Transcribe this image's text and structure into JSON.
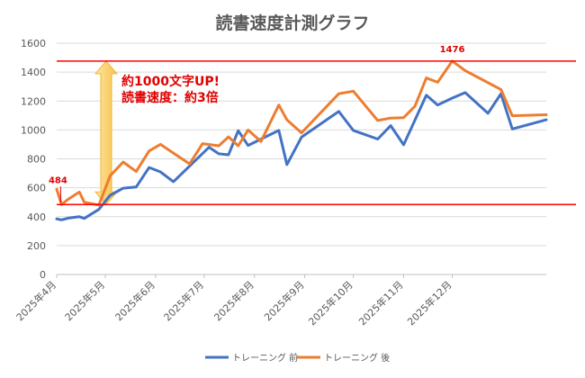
{
  "chart_data": {
    "type": "line",
    "title": "読書速度計測グラフ",
    "xlabel": "",
    "ylabel": "",
    "ylim": [
      0,
      1600
    ],
    "yticks": [
      0,
      200,
      400,
      600,
      800,
      1000,
      1200,
      1400,
      1600
    ],
    "grid": true,
    "legend_position": "bottom",
    "x_labels": [
      "2025年4月",
      "2025年5月",
      "2025年6月",
      "2025年7月",
      "2025年8月",
      "2025年9月",
      "2025年10月",
      "2025年11月",
      "2025年12月"
    ],
    "x_start": "2025-04-01",
    "x_end": "2025-12-31",
    "series": [
      {
        "name": "トレーニング 前",
        "color": "#4472c4",
        "points": [
          [
            "2025-04-01",
            385
          ],
          [
            "2025-04-04",
            378
          ],
          [
            "2025-04-08",
            390
          ],
          [
            "2025-04-15",
            400
          ],
          [
            "2025-04-18",
            388
          ],
          [
            "2025-04-27",
            450
          ],
          [
            "2025-05-04",
            548
          ],
          [
            "2025-05-12",
            597
          ],
          [
            "2025-05-20",
            605
          ],
          [
            "2025-05-28",
            740
          ],
          [
            "2025-06-04",
            710
          ],
          [
            "2025-06-12",
            642
          ],
          [
            "2025-07-04",
            880
          ],
          [
            "2025-07-10",
            835
          ],
          [
            "2025-07-16",
            828
          ],
          [
            "2025-07-22",
            995
          ],
          [
            "2025-07-28",
            893
          ],
          [
            "2025-08-16",
            997
          ],
          [
            "2025-08-21",
            760
          ],
          [
            "2025-08-30",
            950
          ],
          [
            "2025-09-22",
            1128
          ],
          [
            "2025-10-01",
            997
          ],
          [
            "2025-10-16",
            937
          ],
          [
            "2025-10-24",
            1030
          ],
          [
            "2025-11-01",
            897
          ],
          [
            "2025-11-15",
            1240
          ],
          [
            "2025-11-22",
            1172
          ],
          [
            "2025-12-01",
            1220
          ],
          [
            "2025-12-09",
            1258
          ],
          [
            "2025-12-23",
            1115
          ],
          [
            "2025-12-31",
            1250
          ],
          [
            "2026-01-07",
            1007
          ],
          [
            "2026-01-28",
            1070
          ]
        ]
      },
      {
        "name": "トレーニング 後",
        "color": "#ed7d31",
        "points": [
          [
            "2025-04-01",
            590
          ],
          [
            "2025-04-04",
            484
          ],
          [
            "2025-04-08",
            520
          ],
          [
            "2025-04-15",
            570
          ],
          [
            "2025-04-18",
            500
          ],
          [
            "2025-04-27",
            480
          ],
          [
            "2025-05-04",
            683
          ],
          [
            "2025-05-12",
            778
          ],
          [
            "2025-05-20",
            712
          ],
          [
            "2025-05-28",
            855
          ],
          [
            "2025-06-04",
            900
          ],
          [
            "2025-06-12",
            840
          ],
          [
            "2025-06-22",
            765
          ],
          [
            "2025-06-30",
            905
          ],
          [
            "2025-07-10",
            890
          ],
          [
            "2025-07-16",
            952
          ],
          [
            "2025-07-22",
            890
          ],
          [
            "2025-07-28",
            1000
          ],
          [
            "2025-08-05",
            920
          ],
          [
            "2025-08-16",
            1172
          ],
          [
            "2025-08-21",
            1070
          ],
          [
            "2025-08-30",
            980
          ],
          [
            "2025-09-22",
            1250
          ],
          [
            "2025-10-01",
            1268
          ],
          [
            "2025-10-16",
            1065
          ],
          [
            "2025-10-24",
            1082
          ],
          [
            "2025-11-01",
            1085
          ],
          [
            "2025-11-08",
            1165
          ],
          [
            "2025-11-15",
            1360
          ],
          [
            "2025-11-22",
            1330
          ],
          [
            "2025-12-01",
            1476
          ],
          [
            "2025-12-09",
            1410
          ],
          [
            "2025-12-31",
            1280
          ],
          [
            "2026-01-07",
            1098
          ],
          [
            "2026-01-28",
            1105
          ]
        ]
      }
    ],
    "reference_lines": [
      {
        "value": 1476,
        "label": "1476",
        "color": "#ff0000"
      },
      {
        "value": 484,
        "label": "484",
        "color": "#ff0000"
      }
    ],
    "annotation": {
      "line1": "約1000文字UP!",
      "line2": "読書速度：約3倍",
      "arrow_from": 484,
      "arrow_to": 1476
    }
  }
}
